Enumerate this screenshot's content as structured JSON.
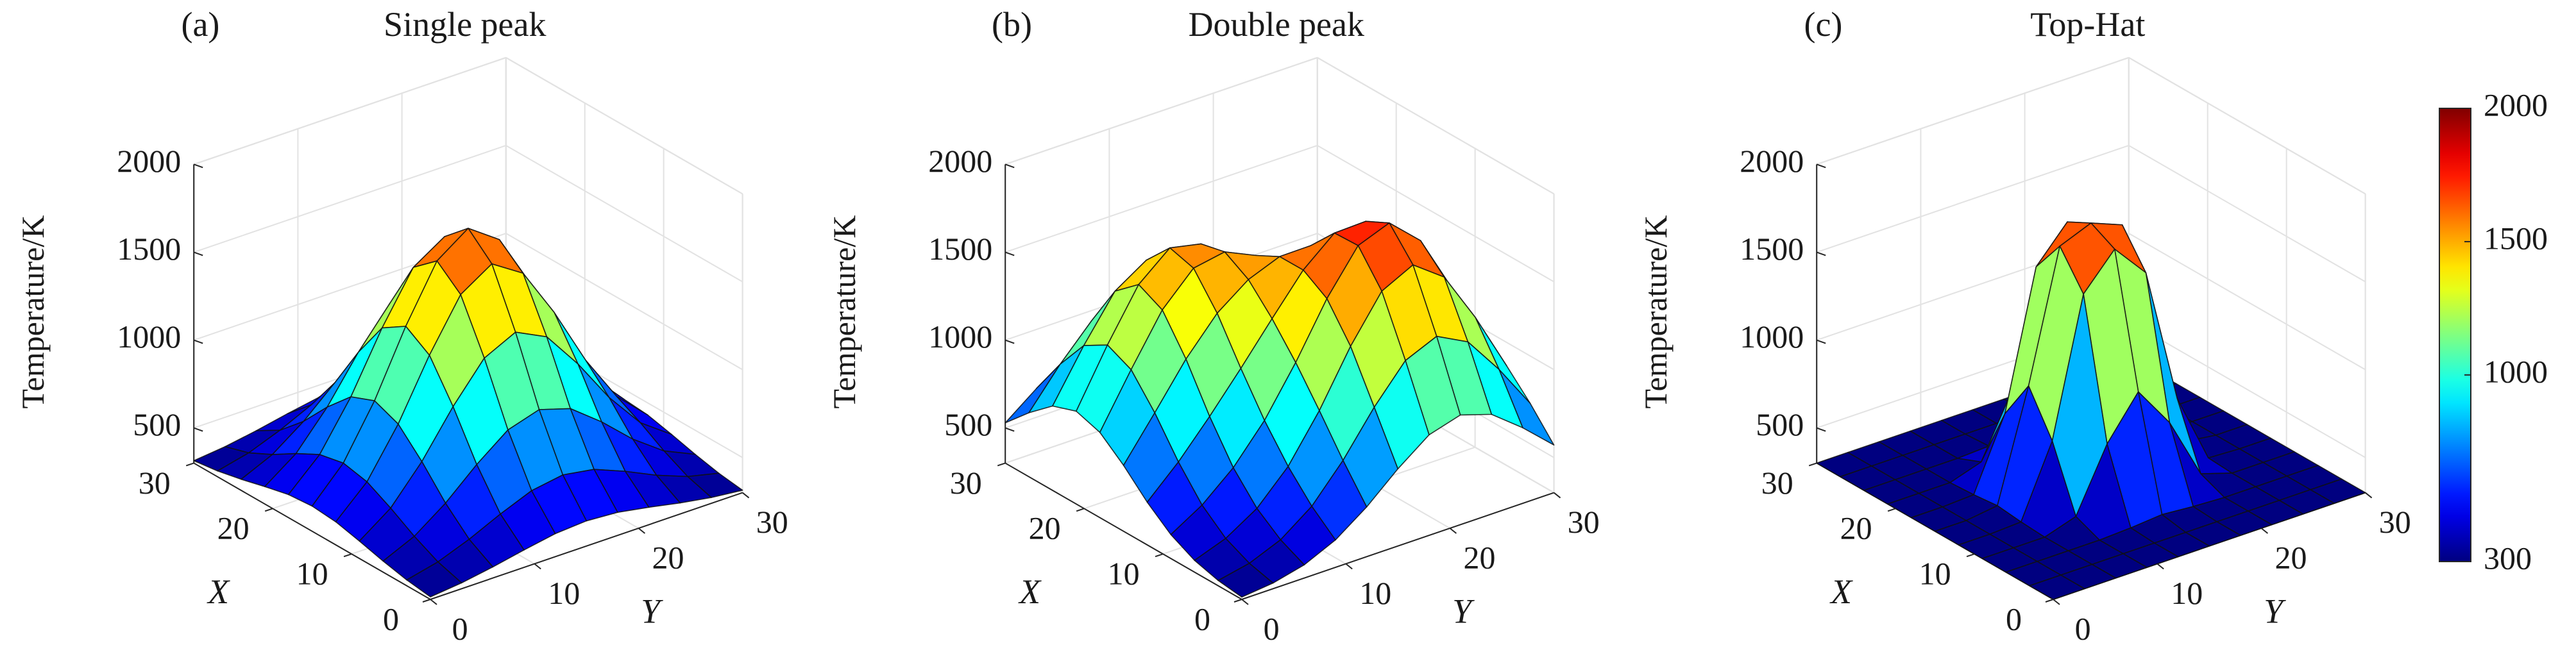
{
  "chart_data": [
    {
      "type": "surface",
      "panel_label": "(a)",
      "title": "Single peak",
      "xlabel": "X",
      "ylabel": "Y",
      "zlabel": "Temperature/K",
      "x": [
        0,
        3,
        6,
        9,
        12,
        15,
        18,
        21,
        24,
        27,
        30
      ],
      "y": [
        0,
        3,
        6,
        9,
        12,
        15,
        18,
        21,
        24,
        27,
        30
      ],
      "z": [
        [
          314,
          333,
          363,
          399,
          431,
          443,
          431,
          399,
          363,
          333,
          314
        ],
        [
          333,
          375,
          443,
          526,
          598,
          627,
          598,
          526,
          443,
          375,
          333
        ],
        [
          363,
          443,
          571,
          730,
          866,
          921,
          866,
          730,
          571,
          443,
          363
        ],
        [
          399,
          526,
          730,
          982,
          1197,
          1284,
          1197,
          982,
          730,
          526,
          399
        ],
        [
          431,
          598,
          866,
          1197,
          1481,
          1595,
          1481,
          1197,
          866,
          598,
          431
        ],
        [
          443,
          627,
          921,
          1284,
          1595,
          1720,
          1595,
          1284,
          921,
          627,
          443
        ],
        [
          431,
          598,
          866,
          1197,
          1481,
          1595,
          1481,
          1197,
          866,
          598,
          431
        ],
        [
          399,
          526,
          730,
          982,
          1197,
          1284,
          1197,
          982,
          730,
          526,
          399
        ],
        [
          363,
          443,
          571,
          730,
          866,
          921,
          866,
          730,
          571,
          443,
          363
        ],
        [
          333,
          375,
          443,
          526,
          598,
          627,
          598,
          526,
          443,
          375,
          333
        ],
        [
          314,
          333,
          363,
          399,
          431,
          443,
          431,
          399,
          363,
          333,
          314
        ]
      ],
      "xlim": [
        0,
        30
      ],
      "ylim": [
        0,
        30
      ],
      "zlim": [
        300,
        2000
      ],
      "xticks": [
        0,
        10,
        20,
        30
      ],
      "yticks": [
        0,
        10,
        20,
        30
      ],
      "zticks": [
        500,
        1000,
        1500,
        2000
      ],
      "colormap": "jet",
      "clim": [
        300,
        2000
      ],
      "grid": true
    },
    {
      "type": "surface",
      "panel_label": "(b)",
      "title": "Double peak",
      "xlabel": "X",
      "ylabel": "Y",
      "zlabel": "Temperature/K",
      "x": [
        0,
        3,
        6,
        9,
        12,
        15,
        18,
        21,
        24,
        27,
        30
      ],
      "y": [
        0,
        3,
        6,
        9,
        12,
        15,
        18,
        21,
        24,
        27,
        30
      ],
      "z": [
        [
          313,
          332,
          375,
          456,
          583,
          739,
          872,
          924,
          867,
          730,
          571
        ],
        [
          330,
          367,
          440,
          570,
          770,
          1012,
          1217,
          1294,
          1202,
          984,
          730
        ],
        [
          367,
          431,
          541,
          719,
          976,
          1281,
          1534,
          1623,
          1493,
          1202,
          867
        ],
        [
          436,
          543,
          695,
          903,
          1172,
          1475,
          1716,
          1784,
          1623,
          1294,
          924
        ],
        [
          543,
          711,
          909,
          1122,
          1344,
          1560,
          1710,
          1716,
          1534,
          1216,
          872
        ],
        [
          675,
          913,
          1158,
          1358,
          1489,
          1559,
          1561,
          1475,
          1281,
          1012,
          739
        ],
        [
          785,
          1081,
          1360,
          1537,
          1569,
          1488,
          1344,
          1172,
          976,
          770,
          583
        ],
        [
          828,
          1144,
          1427,
          1575,
          1537,
          1358,
          1123,
          903,
          719,
          571,
          456
        ],
        [
          780,
          1063,
          1312,
          1427,
          1360,
          1157,
          908,
          695,
          541,
          439,
          375
        ],
        [
          664,
          879,
          1064,
          1144,
          1081,
          913,
          711,
          543,
          431,
          367,
          332
        ],
        [
          529,
          664,
          780,
          828,
          785,
          674,
          543,
          436,
          367,
          330,
          313
        ]
      ],
      "xlim": [
        0,
        30
      ],
      "ylim": [
        0,
        30
      ],
      "zlim": [
        300,
        2000
      ],
      "xticks": [
        0,
        10,
        20,
        30
      ],
      "yticks": [
        0,
        10,
        20,
        30
      ],
      "zticks": [
        500,
        1000,
        1500,
        2000
      ],
      "colormap": "jet",
      "clim": [
        300,
        2000
      ],
      "grid": true
    },
    {
      "type": "surface",
      "panel_label": "(c)",
      "title": "Top-Hat",
      "xlabel": "X",
      "ylabel": "Y",
      "zlabel": "Temperature/K",
      "x": [
        0,
        3,
        6,
        9,
        12,
        15,
        18,
        21,
        24,
        27,
        30
      ],
      "y": [
        0,
        3,
        6,
        9,
        12,
        15,
        18,
        21,
        24,
        27,
        30
      ],
      "z": [
        [
          300,
          300,
          300,
          300,
          300,
          300,
          300,
          300,
          300,
          300,
          300
        ],
        [
          300,
          300,
          300,
          300,
          300,
          300,
          300,
          300,
          300,
          300,
          300
        ],
        [
          300,
          300,
          300,
          300,
          309,
          324,
          309,
          300,
          300,
          300,
          300
        ],
        [
          300,
          300,
          300,
          357,
          709,
          945,
          709,
          357,
          300,
          300,
          300
        ],
        [
          300,
          300,
          309,
          709,
          1484,
          1679,
          1484,
          709,
          309,
          300,
          300
        ],
        [
          300,
          300,
          324,
          945,
          1679,
          1750,
          1679,
          945,
          324,
          300,
          300
        ],
        [
          300,
          300,
          309,
          709,
          1484,
          1679,
          1484,
          709,
          309,
          300,
          300
        ],
        [
          300,
          300,
          300,
          357,
          709,
          945,
          709,
          357,
          300,
          300,
          300
        ],
        [
          300,
          300,
          300,
          300,
          309,
          324,
          309,
          300,
          300,
          300,
          300
        ],
        [
          300,
          300,
          300,
          300,
          300,
          300,
          300,
          300,
          300,
          300,
          300
        ],
        [
          300,
          300,
          300,
          300,
          300,
          300,
          300,
          300,
          300,
          300,
          300
        ]
      ],
      "xlim": [
        0,
        30
      ],
      "ylim": [
        0,
        30
      ],
      "zlim": [
        300,
        2000
      ],
      "xticks": [
        0,
        10,
        20,
        30
      ],
      "yticks": [
        0,
        10,
        20,
        30
      ],
      "zticks": [
        500,
        1000,
        1500,
        2000
      ],
      "colormap": "jet",
      "clim": [
        300,
        2000
      ],
      "grid": true
    }
  ],
  "colorbar": {
    "colormap": "jet",
    "clim": [
      300,
      2000
    ],
    "ticks": [
      300,
      1000,
      1500,
      2000
    ]
  }
}
